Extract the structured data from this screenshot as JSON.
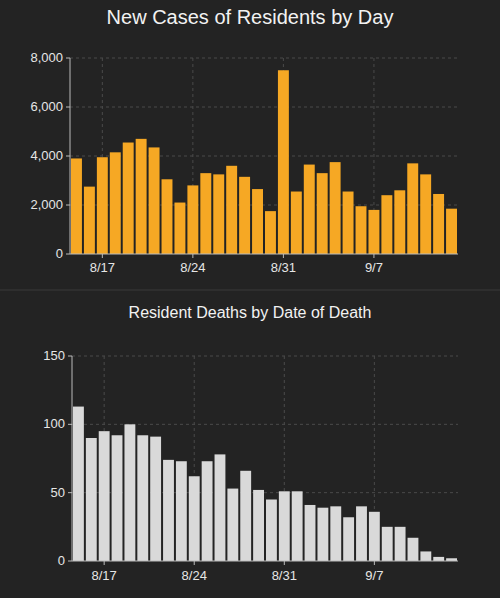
{
  "chart_data": [
    {
      "type": "bar",
      "title": "New Cases of Residents by Day",
      "categories": [
        null,
        null,
        "8/17",
        null,
        null,
        null,
        null,
        null,
        null,
        "8/24",
        null,
        null,
        null,
        null,
        null,
        null,
        "8/31",
        null,
        null,
        null,
        null,
        null,
        null,
        "9/7",
        null,
        null,
        null,
        null,
        null,
        null
      ],
      "values": [
        3900,
        2750,
        3950,
        4150,
        4550,
        4700,
        4350,
        3050,
        2100,
        2800,
        3300,
        3250,
        3600,
        3150,
        2650,
        1750,
        7500,
        2550,
        3650,
        3300,
        3750,
        2550,
        1950,
        1800,
        2400,
        2600,
        3700,
        3250,
        2450,
        1850
      ],
      "color": "#f6a824",
      "ylim": [
        0,
        8000
      ],
      "yticks": [
        0,
        {
          "value": 2000,
          "label": "2,000"
        },
        {
          "value": 4000,
          "label": "4,000"
        },
        {
          "value": 6000,
          "label": "6,000"
        },
        {
          "value": 8000,
          "label": "8,000"
        }
      ],
      "grid": true
    },
    {
      "type": "bar",
      "title": "Resident Deaths by Date of Death",
      "categories": [
        null,
        null,
        "8/17",
        null,
        null,
        null,
        null,
        null,
        null,
        "8/24",
        null,
        null,
        null,
        null,
        null,
        null,
        "8/31",
        null,
        null,
        null,
        null,
        null,
        null,
        "9/7",
        null,
        null,
        null,
        null,
        null,
        null
      ],
      "values": [
        113,
        90,
        95,
        92,
        100,
        92,
        91,
        74,
        73,
        62,
        73,
        78,
        53,
        66,
        52,
        45,
        51,
        51,
        41,
        39,
        40,
        32,
        40,
        36,
        25,
        25,
        17,
        7,
        3,
        2
      ],
      "color": "#d9d9d9",
      "ylim": [
        0,
        150
      ],
      "yticks": [
        0,
        50,
        100,
        150
      ],
      "grid": true
    }
  ]
}
